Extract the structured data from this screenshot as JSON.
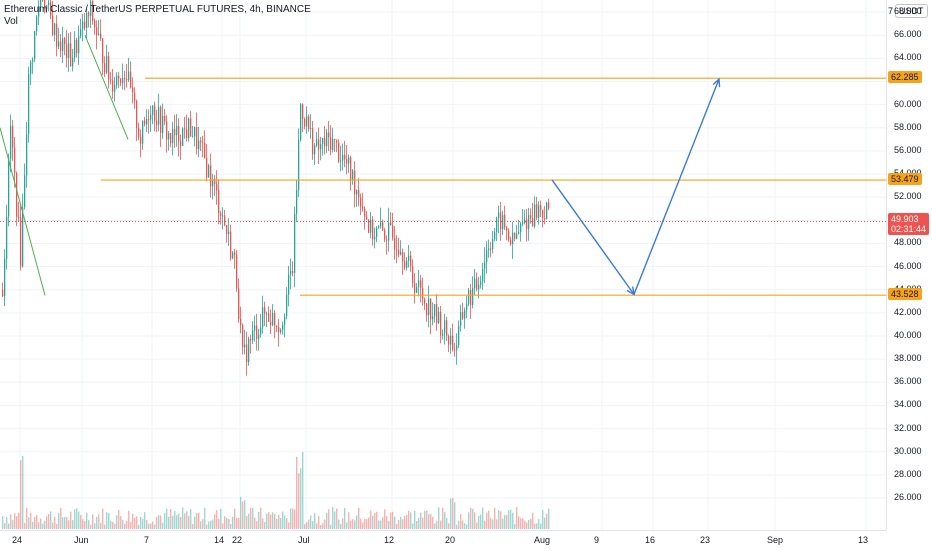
{
  "chart": {
    "title": "Ethereum Classic / TetherUS PERPETUAL FUTURES, 4h, BINANCE",
    "indicator": "Vol",
    "currency": "USDT",
    "axis_top_label": "7",
    "colors": {
      "up": "#26a69a",
      "down": "#ef5350",
      "level": "#f7a21b",
      "arrow": "#3a7bd5",
      "current": "#ef5350"
    }
  },
  "price_axis": {
    "ticks": [
      "68.000",
      "66.000",
      "64.000",
      "62.000",
      "60.000",
      "58.000",
      "56.000",
      "54.000",
      "52.000",
      "50.000",
      "48.000",
      "46.000",
      "44.000",
      "42.000",
      "40.000",
      "38.000",
      "36.000",
      "34.000",
      "32.000",
      "30.000",
      "28.000",
      "26.000"
    ]
  },
  "time_axis": {
    "ticks": [
      "24",
      "Jun",
      "7",
      "14",
      "22",
      "Jul",
      "12",
      "20",
      "Aug",
      "9",
      "16",
      "23",
      "Sep",
      "13"
    ]
  },
  "levels": [
    {
      "label": "62.285",
      "value": 62.285
    },
    {
      "label": "53.479",
      "value": 53.479
    },
    {
      "label": "43.528",
      "value": 43.528
    }
  ],
  "current_price": {
    "label": "49.903",
    "value": 49.903,
    "countdown": "02:31:44"
  },
  "chart_data": {
    "type": "candlestick",
    "title": "Ethereum Classic / TetherUS PERPETUAL FUTURES, 4h, BINANCE",
    "ylim": [
      26,
      70
    ],
    "x": [
      "24",
      "Jun",
      "7",
      "14",
      "22",
      "Jul",
      "12",
      "20",
      "Aug",
      "9",
      "16",
      "23",
      "Sep",
      "13"
    ],
    "price_path": [
      {
        "x": "24",
        "y": 44
      },
      {
        "x": "24",
        "y": 62
      },
      {
        "x": "Jun",
        "y": 68
      },
      {
        "x": "Jun",
        "y": 66
      },
      {
        "x": "7",
        "y": 62
      },
      {
        "x": "7",
        "y": 56
      },
      {
        "x": "14",
        "y": 58
      },
      {
        "x": "14",
        "y": 52
      },
      {
        "x": "22",
        "y": 42
      },
      {
        "x": "22",
        "y": 38
      },
      {
        "x": "Jul",
        "y": 50
      },
      {
        "x": "Jul",
        "y": 58
      },
      {
        "x": "12",
        "y": 54
      },
      {
        "x": "12",
        "y": 47
      },
      {
        "x": "20",
        "y": 42
      },
      {
        "x": "20",
        "y": 40
      },
      {
        "x": "Aug",
        "y": 50
      },
      {
        "x": "Aug",
        "y": 52
      },
      {
        "x": "Aug",
        "y": 49.903
      }
    ],
    "horizontal_levels": [
      62.285,
      53.479,
      43.528
    ],
    "projection_arrows": [
      {
        "from": {
          "x": "Aug",
          "y": 53.5
        },
        "to": {
          "x": "9",
          "y": 43.6
        }
      },
      {
        "from": {
          "x": "9",
          "y": 43.6
        },
        "to": {
          "x": "23",
          "y": 62.2
        }
      }
    ],
    "volume": true
  }
}
